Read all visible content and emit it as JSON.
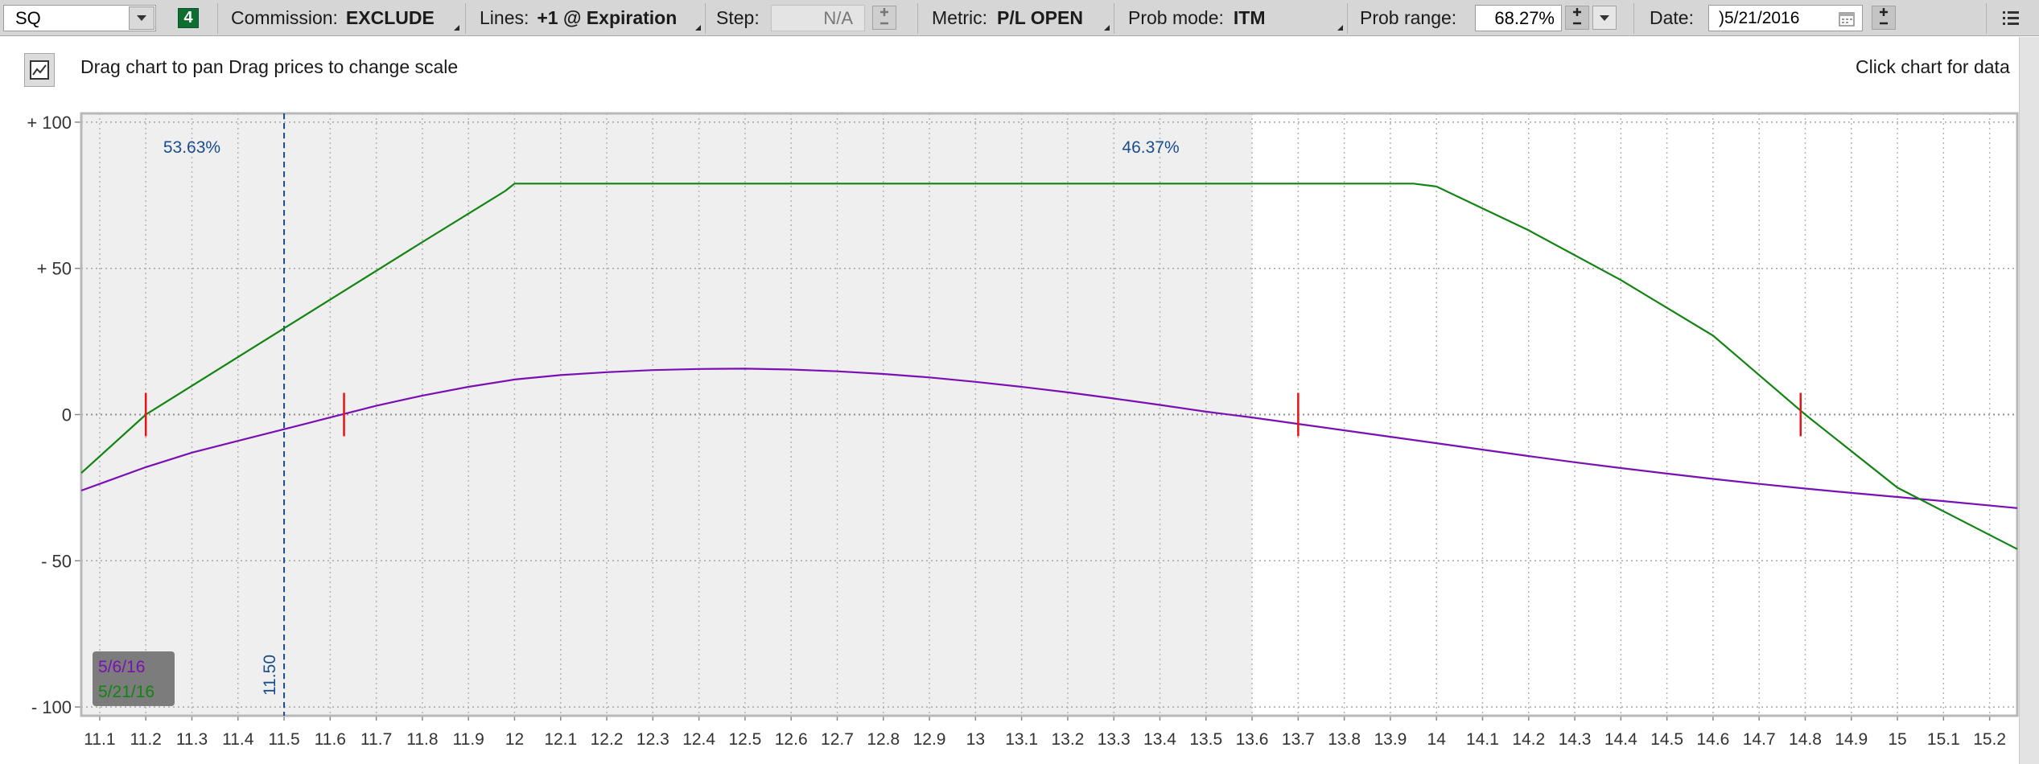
{
  "toolbar": {
    "symbol": "SQ",
    "badge": "4",
    "commission_label": "Commission:",
    "commission_value": "EXCLUDE",
    "lines_label": "Lines:",
    "lines_value": "+1 @ Expiration",
    "step_label": "Step:",
    "step_value": "N/A",
    "metric_label": "Metric:",
    "metric_value": "P/L OPEN",
    "probmode_label": "Prob mode:",
    "probmode_value": "ITM",
    "probrange_label": "Prob range:",
    "probrange_value": "68.27%",
    "date_label": "Date:",
    "date_value": ")5/21/2016"
  },
  "hints": {
    "left": "Drag chart to pan Drag prices to change scale",
    "right": "Click chart for data"
  },
  "colors": {
    "series_1": "#7a10b3",
    "series_2": "#128412",
    "breakeven": "#e81414",
    "marker": "#1a4d8c",
    "shade": "#efefef"
  },
  "icons": [
    "dropdown-arrow-icon",
    "chart-settings-icon",
    "calendar-icon",
    "menu-icon",
    "plus-icon",
    "minus-icon"
  ],
  "chart_data": {
    "type": "line",
    "xlim": [
      11.06,
      15.26
    ],
    "ylim": [
      -103,
      103
    ],
    "x_ticks": [
      "11.1",
      "11.2",
      "11.3",
      "11.4",
      "11.5",
      "11.6",
      "11.7",
      "11.8",
      "11.9",
      "12",
      "12.1",
      "12.2",
      "12.3",
      "12.4",
      "12.5",
      "12.6",
      "12.7",
      "12.8",
      "12.9",
      "13",
      "13.1",
      "13.2",
      "13.3",
      "13.4",
      "13.5",
      "13.6",
      "13.7",
      "13.8",
      "13.9",
      "14",
      "14.1",
      "14.2",
      "14.3",
      "14.4",
      "14.5",
      "14.6",
      "14.7",
      "14.8",
      "14.9",
      "15",
      "15.1",
      "15.2"
    ],
    "y_ticks": [
      {
        "value": 100,
        "label": "+ 100"
      },
      {
        "value": 50,
        "label": "+ 50"
      },
      {
        "value": 0,
        "label": "0"
      },
      {
        "value": -50,
        "label": "- 50"
      },
      {
        "value": -100,
        "label": "- 100"
      }
    ],
    "shaded_range": [
      11.06,
      13.6
    ],
    "probabilities": [
      {
        "label": "53.63%",
        "x": 11.3
      },
      {
        "label": "46.37%",
        "x": 13.38
      }
    ],
    "current_price": {
      "x": 11.5,
      "label": "11.50"
    },
    "series": [
      {
        "name": "5/6/16",
        "color": "#7a10b3",
        "x": [
          11.06,
          11.2,
          11.3,
          11.4,
          11.5,
          11.6,
          11.7,
          11.8,
          11.9,
          12.0,
          12.1,
          12.2,
          12.3,
          12.4,
          12.5,
          12.6,
          12.7,
          12.8,
          12.9,
          13.0,
          13.1,
          13.2,
          13.3,
          13.4,
          13.5,
          13.6,
          13.7,
          13.8,
          13.9,
          14.0,
          14.1,
          14.2,
          14.3,
          14.4,
          14.5,
          14.6,
          14.7,
          14.8,
          14.9,
          15.0,
          15.1,
          15.26
        ],
        "y": [
          -26,
          -18,
          -13,
          -9,
          -5,
          -1,
          3,
          6.5,
          9.5,
          12,
          13.5,
          14.5,
          15.2,
          15.6,
          15.7,
          15.4,
          14.8,
          13.9,
          12.7,
          11.2,
          9.5,
          7.6,
          5.5,
          3.3,
          1,
          -1,
          -3.2,
          -5.4,
          -7.6,
          -9.8,
          -12,
          -14.2,
          -16.3,
          -18.3,
          -20.2,
          -22,
          -23.7,
          -25.3,
          -26.8,
          -28.2,
          -29.6,
          -32
        ]
      },
      {
        "name": "5/21/16",
        "color": "#128412",
        "x": [
          11.06,
          11.2,
          11.5,
          11.8,
          11.98,
          12.0,
          13.0,
          13.95,
          14.0,
          14.2,
          14.4,
          14.6,
          14.8,
          15.0,
          15.26
        ],
        "y": [
          -20,
          0,
          29.5,
          59,
          76.5,
          79,
          79,
          79,
          78,
          63,
          46,
          27,
          0,
          -25,
          -46
        ]
      }
    ],
    "breakevens": [
      11.2,
      11.63,
      13.7,
      14.79
    ]
  }
}
